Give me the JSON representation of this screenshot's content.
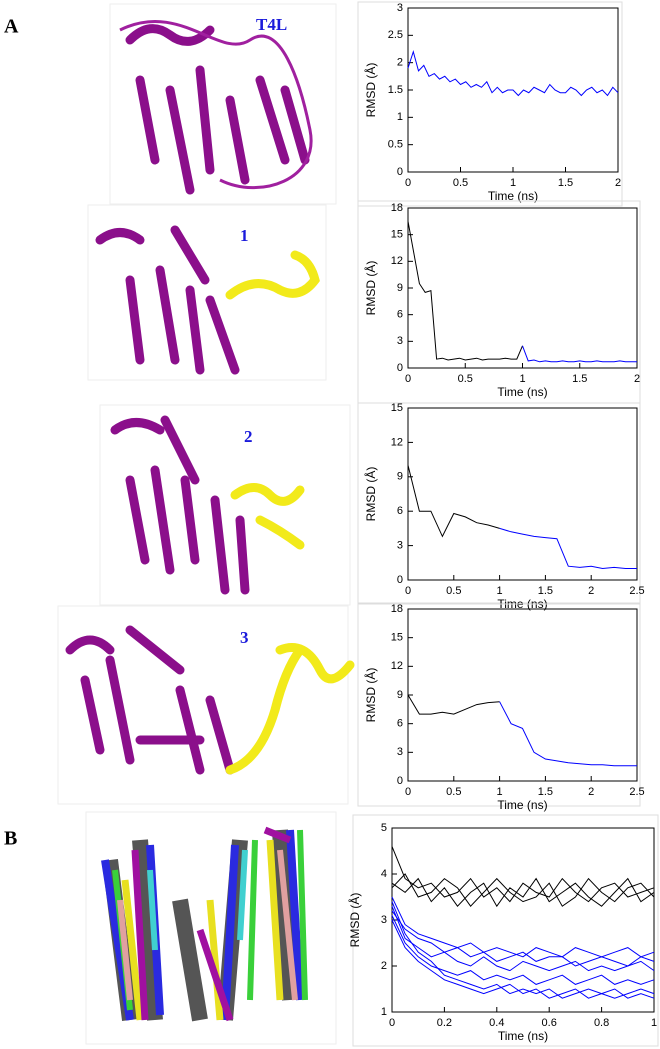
{
  "panel_labels": [
    "A",
    "B"
  ],
  "structure_labels": [
    "T4L",
    "1",
    "2",
    "3"
  ],
  "chart_data": [
    {
      "type": "line",
      "xlabel": "Time (ns)",
      "ylabel": "RMSD (Å)",
      "x": [
        0,
        0.05,
        0.1,
        0.15,
        0.2,
        0.25,
        0.3,
        0.35,
        0.4,
        0.45,
        0.5,
        0.55,
        0.6,
        0.65,
        0.7,
        0.75,
        0.8,
        0.85,
        0.9,
        0.95,
        1,
        1.05,
        1.1,
        1.15,
        1.2,
        1.25,
        1.3,
        1.35,
        1.4,
        1.45,
        1.5,
        1.55,
        1.6,
        1.65,
        1.7,
        1.75,
        1.8,
        1.85,
        1.9,
        1.95,
        2
      ],
      "series": [
        {
          "color": "#0000ff",
          "values": [
            1.9,
            2.2,
            1.85,
            1.95,
            1.75,
            1.8,
            1.7,
            1.75,
            1.65,
            1.7,
            1.6,
            1.65,
            1.55,
            1.6,
            1.55,
            1.65,
            1.45,
            1.55,
            1.45,
            1.5,
            1.5,
            1.4,
            1.5,
            1.45,
            1.55,
            1.5,
            1.45,
            1.6,
            1.5,
            1.45,
            1.45,
            1.55,
            1.5,
            1.4,
            1.5,
            1.55,
            1.45,
            1.5,
            1.4,
            1.55,
            1.45
          ]
        }
      ],
      "xlim": [
        0,
        2
      ],
      "xticks": [
        0,
        0.5,
        1,
        1.5,
        2
      ],
      "ylim": [
        0,
        3
      ],
      "yticks": [
        0,
        0.5,
        1,
        1.5,
        2,
        2.5,
        3
      ]
    },
    {
      "type": "line",
      "xlabel": "Time (ns)",
      "ylabel": "RMSD (Å)",
      "x": [
        0,
        0.05,
        0.1,
        0.15,
        0.2,
        0.25,
        0.3,
        0.35,
        0.4,
        0.45,
        0.5,
        0.55,
        0.6,
        0.65,
        0.7,
        0.75,
        0.8,
        0.85,
        0.9,
        0.95,
        1,
        1.05,
        1.1,
        1.15,
        1.2,
        1.25,
        1.3,
        1.35,
        1.4,
        1.45,
        1.5,
        1.55,
        1.6,
        1.65,
        1.7,
        1.75,
        1.8,
        1.85,
        1.9,
        1.95,
        2
      ],
      "series": [
        {
          "color": "#000000",
          "values": [
            16.5,
            13,
            9.5,
            8.5,
            8.7,
            1.0,
            1.1,
            0.9,
            1.0,
            1.1,
            0.9,
            1.0,
            1.1,
            0.9,
            1.0,
            1.0,
            1.0,
            1.1,
            1.0,
            1.0,
            2.5,
            null,
            null,
            null,
            null,
            null,
            null,
            null,
            null,
            null,
            null,
            null,
            null,
            null,
            null,
            null,
            null,
            null,
            null,
            null,
            null
          ]
        },
        {
          "color": "#0000ff",
          "values": [
            null,
            null,
            null,
            null,
            null,
            null,
            null,
            null,
            null,
            null,
            null,
            null,
            null,
            null,
            null,
            null,
            null,
            null,
            null,
            null,
            2.5,
            0.8,
            0.9,
            0.7,
            0.8,
            0.7,
            0.7,
            0.8,
            0.7,
            0.7,
            0.8,
            0.7,
            0.7,
            0.8,
            0.7,
            0.7,
            0.7,
            0.8,
            0.7,
            0.7,
            0.7
          ]
        }
      ],
      "xlim": [
        0,
        2
      ],
      "xticks": [
        0,
        0.5,
        1,
        1.5,
        2
      ],
      "ylim": [
        0,
        18
      ],
      "yticks": [
        0,
        3,
        6,
        9,
        12,
        15,
        18
      ]
    },
    {
      "type": "line",
      "xlabel": "Time (ns)",
      "ylabel": "RMSD (Å)",
      "x": [
        0,
        0.125,
        0.25,
        0.375,
        0.5,
        0.625,
        0.75,
        0.875,
        1,
        1.125,
        1.25,
        1.375,
        1.5,
        1.625,
        1.75,
        1.875,
        2,
        2.125,
        2.25,
        2.375,
        2.5
      ],
      "series": [
        {
          "color": "#000000",
          "values": [
            10,
            6,
            6,
            3.8,
            5.8,
            5.5,
            5,
            4.8,
            4.5,
            null,
            null,
            null,
            null,
            null,
            null,
            null,
            null,
            null,
            null,
            null,
            null
          ]
        },
        {
          "color": "#0000ff",
          "values": [
            null,
            null,
            null,
            null,
            null,
            null,
            null,
            null,
            4.5,
            4.2,
            4.0,
            3.8,
            3.7,
            3.6,
            1.2,
            1.1,
            1.2,
            1.0,
            1.1,
            1.0,
            1.0
          ]
        }
      ],
      "xlim": [
        0,
        2.5
      ],
      "xticks": [
        0,
        0.5,
        1,
        1.5,
        2,
        2.5
      ],
      "ylim": [
        0,
        15
      ],
      "yticks": [
        0,
        3,
        6,
        9,
        12,
        15
      ]
    },
    {
      "type": "line",
      "xlabel": "Time (ns)",
      "ylabel": "RMSD (Å)",
      "x": [
        0,
        0.125,
        0.25,
        0.375,
        0.5,
        0.625,
        0.75,
        0.875,
        1,
        1.125,
        1.25,
        1.375,
        1.5,
        1.625,
        1.75,
        1.875,
        2,
        2.125,
        2.25,
        2.375,
        2.5
      ],
      "series": [
        {
          "color": "#000000",
          "values": [
            9,
            7,
            7,
            7.2,
            7,
            7.5,
            8,
            8.2,
            8.3,
            null,
            null,
            null,
            null,
            null,
            null,
            null,
            null,
            null,
            null,
            null,
            null
          ]
        },
        {
          "color": "#0000ff",
          "values": [
            null,
            null,
            null,
            null,
            null,
            null,
            null,
            null,
            8.3,
            6,
            5.5,
            3,
            2.3,
            2.1,
            1.9,
            1.8,
            1.7,
            1.7,
            1.6,
            1.6,
            1.6
          ]
        }
      ],
      "xlim": [
        0,
        2.5
      ],
      "xticks": [
        0,
        0.5,
        1,
        1.5,
        2,
        2.5
      ],
      "ylim": [
        0,
        18
      ],
      "yticks": [
        0,
        3,
        6,
        9,
        12,
        15,
        18
      ]
    },
    {
      "type": "line",
      "xlabel": "Time (ns)",
      "ylabel": "RMSD (Å)",
      "x": [
        0,
        0.05,
        0.1,
        0.15,
        0.2,
        0.25,
        0.3,
        0.35,
        0.4,
        0.45,
        0.5,
        0.55,
        0.6,
        0.65,
        0.7,
        0.75,
        0.8,
        0.85,
        0.9,
        0.95,
        1
      ],
      "series": [
        {
          "color": "#000000",
          "values": [
            4.6,
            3.9,
            3.7,
            3.8,
            3.5,
            3.6,
            3.9,
            3.5,
            3.7,
            3.4,
            3.8,
            3.6,
            3.5,
            3.9,
            3.6,
            3.4,
            3.7,
            3.8,
            3.5,
            3.6,
            3.7
          ]
        },
        {
          "color": "#000000",
          "values": [
            3.8,
            3.6,
            3.9,
            3.4,
            3.7,
            3.3,
            3.6,
            3.8,
            3.3,
            3.7,
            3.5,
            3.9,
            3.4,
            3.6,
            3.8,
            3.5,
            3.3,
            3.6,
            3.9,
            3.4,
            3.6
          ]
        },
        {
          "color": "#000000",
          "values": [
            3.7,
            4.0,
            3.5,
            3.6,
            3.9,
            3.7,
            3.3,
            3.6,
            3.9,
            3.6,
            3.4,
            3.5,
            3.8,
            3.3,
            3.5,
            3.9,
            3.6,
            3.4,
            3.7,
            3.8,
            3.5
          ]
        },
        {
          "color": "#0000ff",
          "values": [
            3.5,
            2.9,
            2.7,
            2.6,
            2.5,
            2.4,
            2.5,
            2.3,
            2.4,
            2.3,
            2.2,
            2.4,
            2.3,
            2.2,
            2.4,
            2.3,
            2.2,
            2.3,
            2.4,
            2.2,
            2.3
          ]
        },
        {
          "color": "#0000ff",
          "values": [
            3.3,
            2.6,
            2.4,
            2.2,
            2.3,
            2.1,
            2.0,
            2.2,
            2.0,
            1.9,
            2.1,
            2.0,
            1.9,
            2.0,
            2.1,
            1.9,
            2.0,
            1.9,
            2.0,
            2.1,
            1.9
          ]
        },
        {
          "color": "#0000ff",
          "values": [
            3.1,
            2.5,
            2.2,
            2.0,
            1.9,
            1.8,
            1.9,
            1.7,
            1.8,
            1.7,
            1.8,
            1.6,
            1.7,
            1.8,
            1.6,
            1.7,
            1.8,
            1.6,
            1.7,
            1.6,
            1.7
          ]
        },
        {
          "color": "#0000ff",
          "values": [
            3.4,
            2.7,
            2.3,
            2.1,
            1.8,
            1.7,
            1.6,
            1.5,
            1.6,
            1.4,
            1.5,
            1.4,
            1.5,
            1.3,
            1.4,
            1.5,
            1.4,
            1.3,
            1.4,
            1.5,
            1.4
          ]
        },
        {
          "color": "#0000ff",
          "values": [
            3.2,
            2.8,
            2.6,
            2.5,
            2.3,
            2.4,
            2.2,
            2.3,
            2.1,
            2.2,
            2.3,
            2.1,
            2.2,
            2.2,
            2.0,
            2.1,
            2.2,
            2.1,
            2.0,
            2.2,
            2.1
          ]
        },
        {
          "color": "#0000ff",
          "values": [
            3.0,
            2.4,
            2.1,
            1.9,
            1.7,
            1.6,
            1.5,
            1.4,
            1.5,
            1.6,
            1.4,
            1.5,
            1.3,
            1.4,
            1.5,
            1.3,
            1.4,
            1.5,
            1.3,
            1.4,
            1.3
          ]
        }
      ],
      "xlim": [
        0,
        1
      ],
      "xticks": [
        0,
        0.2,
        0.4,
        0.6,
        0.8,
        1
      ],
      "ylim": [
        1,
        5
      ],
      "yticks": [
        1,
        2,
        3,
        4,
        5
      ]
    }
  ]
}
